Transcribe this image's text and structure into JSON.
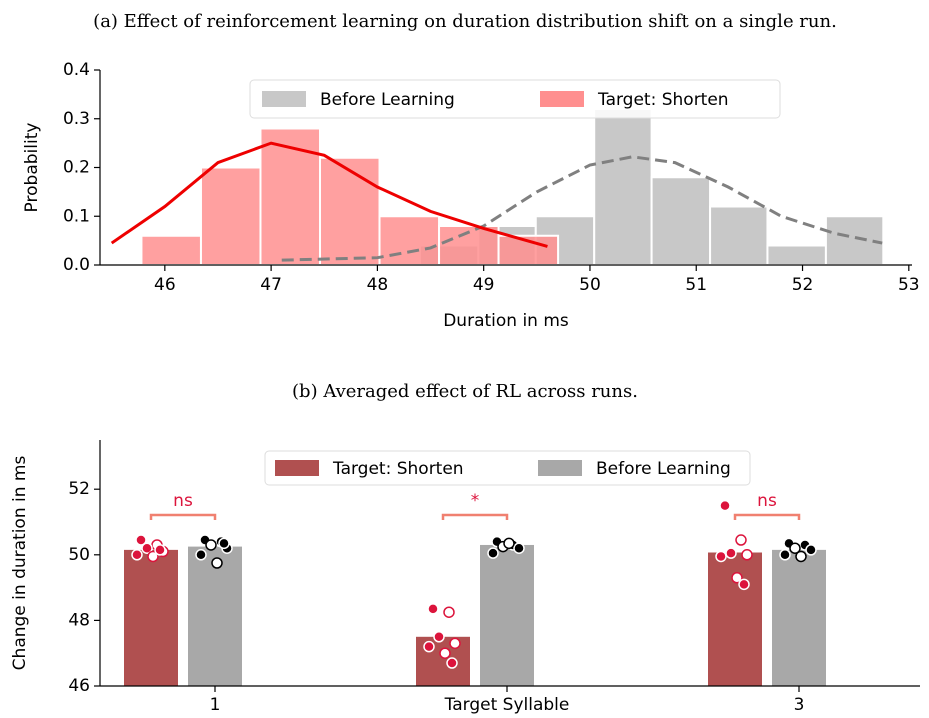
{
  "chart_data": [
    {
      "type": "histogram",
      "title": "(a) Effect of reinforcement learning on duration distribution shift on a single run.",
      "xlabel": "Duration in ms",
      "ylabel": "Probability",
      "xlim": [
        45.39,
        53.03
      ],
      "ylim": [
        0,
        0.4
      ],
      "xticks": [
        46,
        47,
        48,
        49,
        50,
        51,
        52,
        53
      ],
      "yticks": [
        {
          "value": 0,
          "label": "0.0"
        },
        0.1,
        0.2,
        0.3,
        0.4
      ],
      "legend": "upper center",
      "series": [
        {
          "name": "Before Learning",
          "color": "#c8c8c8",
          "bins": [
            48.4,
            48.95,
            49.49,
            50.04,
            50.58,
            51.13,
            51.67,
            52.22,
            52.76
          ],
          "values": [
            0.04,
            0.08,
            0.1,
            0.32,
            0.18,
            0.12,
            0.04,
            0.1
          ],
          "kde": {
            "color": "#808080",
            "dashed": true,
            "x": [
              47.1,
              48.0,
              48.5,
              49.0,
              49.5,
              50.0,
              50.4,
              50.8,
              51.3,
              51.8,
              52.3,
              52.75
            ],
            "values": [
              0.01,
              0.015,
              0.035,
              0.08,
              0.15,
              0.205,
              0.222,
              0.21,
              0.16,
              0.1,
              0.065,
              0.045
            ]
          }
        },
        {
          "name": "Target: Shorten",
          "color": "#ff8f8f",
          "bins": [
            45.78,
            46.34,
            46.9,
            47.46,
            48.02,
            48.58,
            49.14,
            49.7
          ],
          "values": [
            0.06,
            0.2,
            0.28,
            0.22,
            0.1,
            0.08,
            0.06
          ],
          "kde": {
            "color": "#ee0000",
            "dashed": false,
            "x": [
              45.5,
              46.0,
              46.5,
              47.0,
              47.5,
              48.0,
              48.5,
              49.0,
              49.6
            ],
            "values": [
              0.045,
              0.12,
              0.21,
              0.25,
              0.225,
              0.16,
              0.11,
              0.075,
              0.038
            ]
          }
        }
      ]
    },
    {
      "type": "bar",
      "title": "(b) Averaged effect of RL across runs.",
      "ylabel": "Change in duration in ms",
      "categories": [
        "1",
        "Target Syllable",
        "3"
      ],
      "ylim": [
        46,
        53.5
      ],
      "yticks": [
        46,
        48,
        50,
        52
      ],
      "legend": "upper center",
      "significance": [
        "ns",
        "*",
        "ns"
      ],
      "significance_color": "#dc143c",
      "series": [
        {
          "name": "Target: Shorten",
          "color": "#b05050",
          "point_color": "#dc143c",
          "values": [
            50.15,
            47.5,
            50.07
          ],
          "points": [
            [
              50.45,
              50.3,
              50.2,
              50.1,
              50.0,
              49.95,
              50.15
            ],
            [
              48.35,
              48.25,
              47.5,
              47.3,
              47.2,
              47.0,
              46.7
            ],
            [
              51.5,
              50.45,
              50.05,
              50.0,
              49.95,
              49.3,
              49.1
            ]
          ]
        },
        {
          "name": "Before Learning",
          "color": "#a8a8a8",
          "point_color": "#000000",
          "values": [
            50.25,
            50.3,
            50.15
          ],
          "points": [
            [
              50.45,
              50.4,
              50.3,
              50.2,
              50.0,
              49.75,
              50.35
            ],
            [
              50.4,
              50.3,
              50.25,
              50.2,
              50.05,
              50.35
            ],
            [
              50.35,
              50.3,
              50.2,
              50.15,
              50.0,
              49.95
            ]
          ]
        }
      ]
    }
  ]
}
